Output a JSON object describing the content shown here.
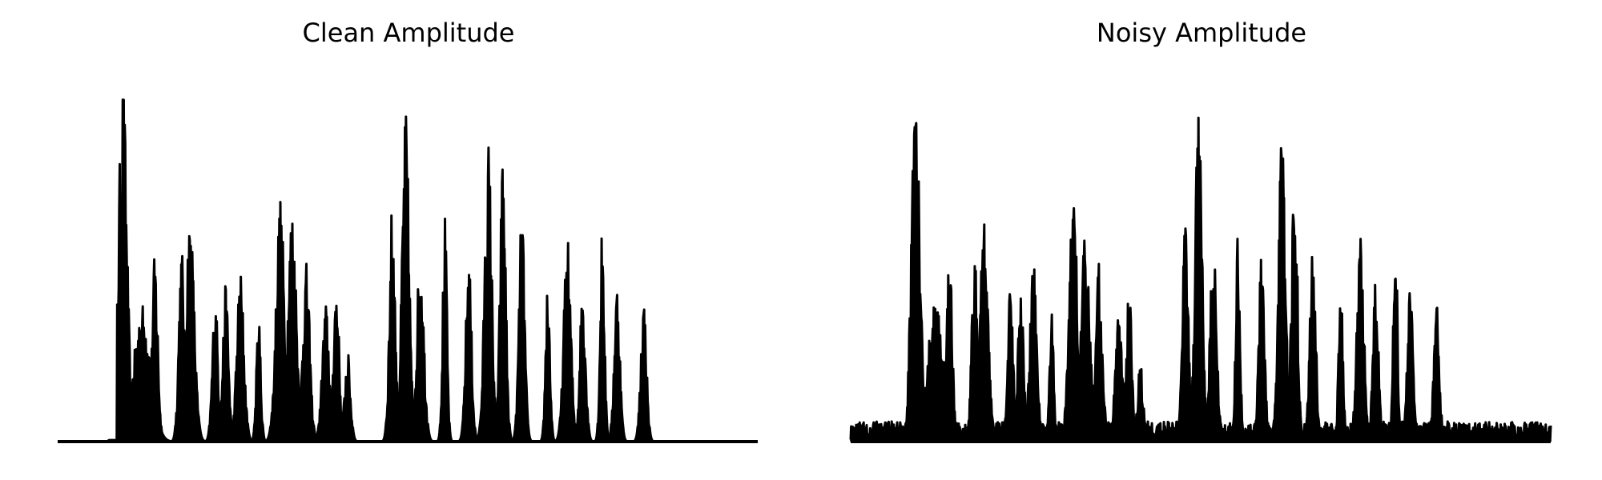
{
  "charts": [
    {
      "title": "Clean Amplitude",
      "chart_data": {
        "type": "line",
        "title": "Clean Amplitude",
        "xlabel": "",
        "ylabel": "",
        "axes_visible": false,
        "grid": false,
        "legend": "none",
        "line_color": "#000000",
        "ylim": [
          0,
          1.0
        ],
        "x_unit": "sample index (0-1)",
        "peaks": [
          [
            0.093,
            0.996,
            0.006
          ],
          [
            0.121,
            0.38,
            0.012
          ],
          [
            0.139,
            0.52,
            0.004
          ],
          [
            0.177,
            0.54,
            0.004
          ],
          [
            0.189,
            0.63,
            0.006
          ],
          [
            0.225,
            0.4,
            0.004
          ],
          [
            0.24,
            0.43,
            0.004
          ],
          [
            0.261,
            0.47,
            0.005
          ],
          [
            0.287,
            0.35,
            0.003
          ],
          [
            0.318,
            0.67,
            0.006
          ],
          [
            0.335,
            0.65,
            0.006
          ],
          [
            0.355,
            0.49,
            0.005
          ],
          [
            0.383,
            0.38,
            0.005
          ],
          [
            0.398,
            0.45,
            0.004
          ],
          [
            0.414,
            0.25,
            0.004
          ],
          [
            0.478,
            0.66,
            0.004
          ],
          [
            0.497,
            0.91,
            0.005
          ],
          [
            0.518,
            0.53,
            0.005
          ],
          [
            0.553,
            0.62,
            0.003
          ],
          [
            0.587,
            0.52,
            0.004
          ],
          [
            0.615,
            0.83,
            0.005
          ],
          [
            0.636,
            0.79,
            0.004
          ],
          [
            0.663,
            0.63,
            0.004
          ],
          [
            0.7,
            0.46,
            0.003
          ],
          [
            0.728,
            0.56,
            0.005
          ],
          [
            0.75,
            0.44,
            0.004
          ],
          [
            0.778,
            0.6,
            0.003
          ],
          [
            0.799,
            0.44,
            0.004
          ],
          [
            0.837,
            0.4,
            0.004
          ]
        ],
        "floor": 0.0
      }
    },
    {
      "title": "Noisy Amplitude",
      "chart_data": {
        "type": "line",
        "title": "Noisy Amplitude",
        "xlabel": "",
        "ylabel": "",
        "axes_visible": false,
        "grid": false,
        "legend": "none",
        "line_color": "#000000",
        "ylim": [
          0,
          1.0
        ],
        "x_unit": "sample index (0-1)",
        "peaks": [
          [
            0.093,
            0.996,
            0.006
          ],
          [
            0.121,
            0.38,
            0.012
          ],
          [
            0.141,
            0.52,
            0.004
          ],
          [
            0.177,
            0.54,
            0.004
          ],
          [
            0.19,
            0.61,
            0.006
          ],
          [
            0.228,
            0.42,
            0.004
          ],
          [
            0.243,
            0.42,
            0.004
          ],
          [
            0.261,
            0.49,
            0.005
          ],
          [
            0.287,
            0.35,
            0.003
          ],
          [
            0.318,
            0.66,
            0.006
          ],
          [
            0.335,
            0.62,
            0.006
          ],
          [
            0.355,
            0.49,
            0.005
          ],
          [
            0.383,
            0.35,
            0.005
          ],
          [
            0.398,
            0.43,
            0.004
          ],
          [
            0.414,
            0.22,
            0.004
          ],
          [
            0.478,
            0.66,
            0.004
          ],
          [
            0.497,
            0.91,
            0.005
          ],
          [
            0.518,
            0.53,
            0.005
          ],
          [
            0.553,
            0.6,
            0.003
          ],
          [
            0.587,
            0.52,
            0.004
          ],
          [
            0.616,
            0.83,
            0.005
          ],
          [
            0.634,
            0.81,
            0.004
          ],
          [
            0.66,
            0.62,
            0.004
          ],
          [
            0.7,
            0.46,
            0.003
          ],
          [
            0.728,
            0.56,
            0.005
          ],
          [
            0.75,
            0.44,
            0.004
          ],
          [
            0.778,
            0.6,
            0.003
          ],
          [
            0.799,
            0.44,
            0.004
          ],
          [
            0.837,
            0.38,
            0.004
          ]
        ],
        "floor": 0.025
      }
    }
  ]
}
